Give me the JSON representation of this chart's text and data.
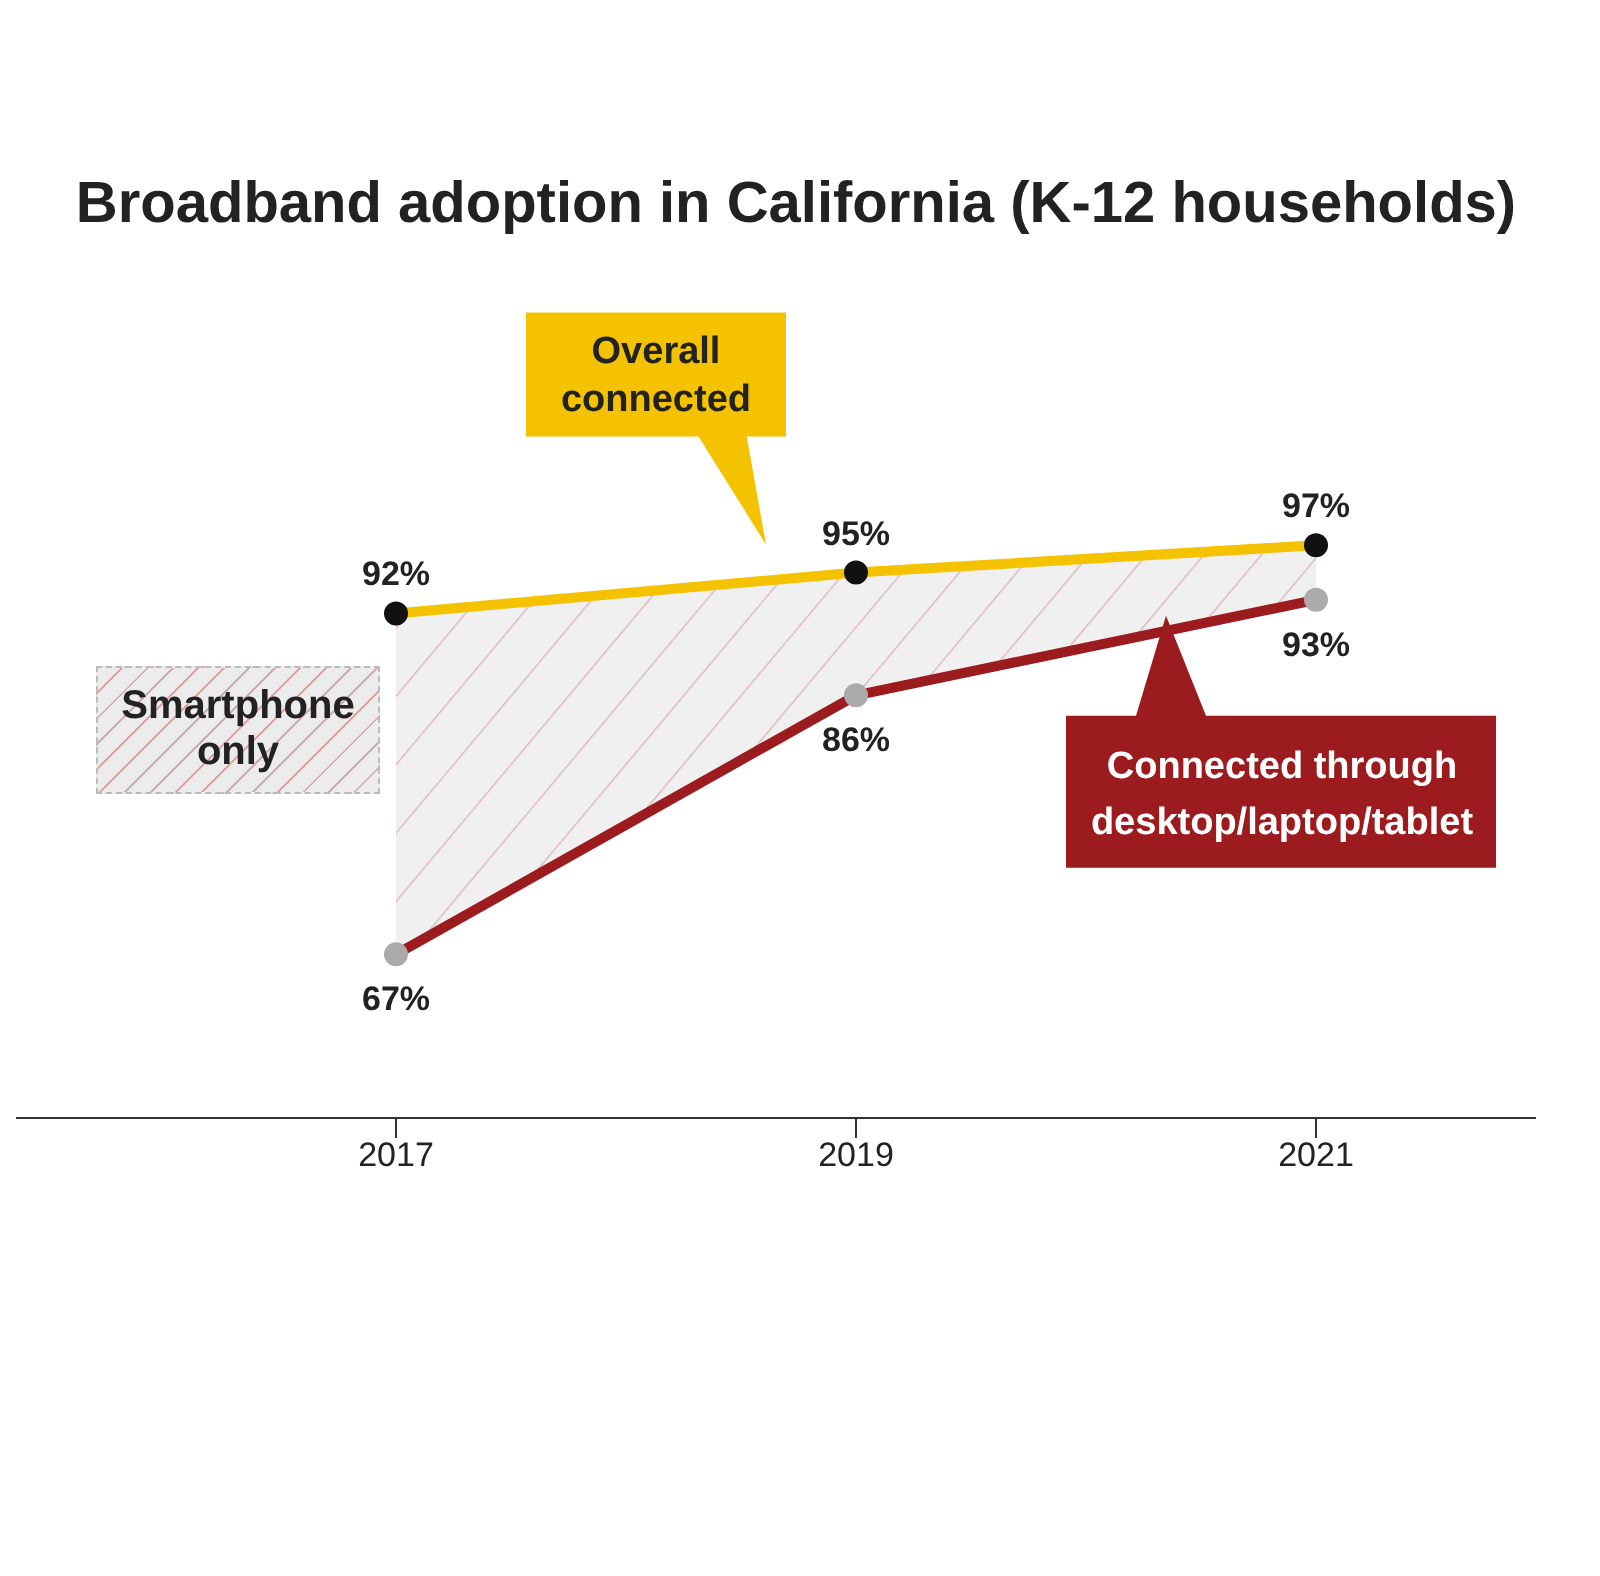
{
  "chart_data": {
    "type": "line",
    "title": "Broadband adoption in California (K-12 households)",
    "categories": [
      "2017",
      "2019",
      "2021"
    ],
    "series": [
      {
        "name": "Overall connected",
        "color": "#f5c200",
        "values": [
          92,
          95,
          97
        ],
        "value_labels": [
          "92%",
          "95%",
          "97%"
        ]
      },
      {
        "name": "Connected through desktop/laptop/tablet",
        "color": "#9b1b1e",
        "values": [
          67,
          86,
          93
        ],
        "value_labels": [
          "67%",
          "86%",
          "93%"
        ],
        "lower": [
          67,
          86,
          93
        ],
        "upper": [
          92,
          95,
          97
        ]
      }
    ],
    "annotations": [
      "Smartphone only"
    ],
    "grid": false,
    "legend": false,
    "marker": "circle",
    "line_style": "solid"
  }
}
